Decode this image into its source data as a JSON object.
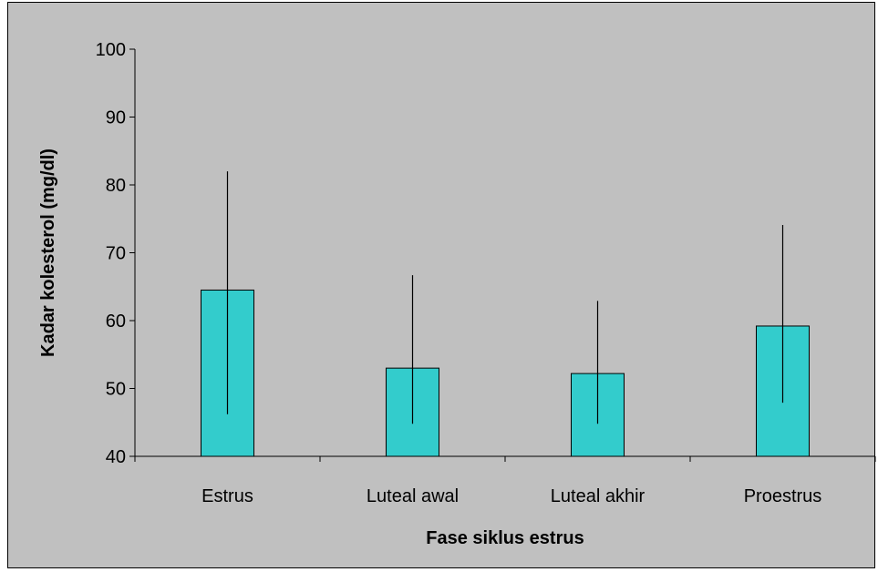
{
  "chart_data": {
    "type": "bar",
    "categories": [
      "Estrus",
      "Luteal awal",
      "Luteal akhir",
      "Proestrus"
    ],
    "values": [
      64.5,
      53.0,
      52.2,
      59.2
    ],
    "error_low": [
      46.2,
      44.8,
      44.8,
      47.9
    ],
    "error_high": [
      82.0,
      66.7,
      62.9,
      74.1
    ],
    "xlabel": "Fase siklus estrus",
    "ylabel": "Kadar kolesterol (mg/dl)",
    "ylim": [
      40,
      100
    ],
    "yticks": [
      40,
      50,
      60,
      70,
      80,
      90,
      100
    ],
    "grid": false,
    "legend": false,
    "colors": {
      "bar": "#33cccc",
      "background": "#c0c0c0",
      "axis": "#000000"
    }
  }
}
